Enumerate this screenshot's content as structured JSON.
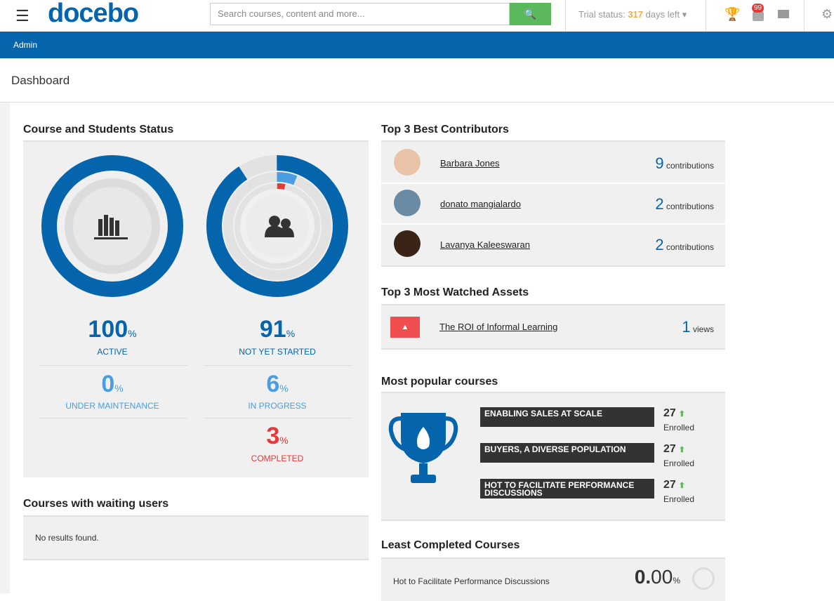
{
  "header": {
    "logo": "docebo",
    "search_placeholder": "Search courses, content and more...",
    "trial_label": "Trial status:",
    "trial_days": "317",
    "trial_suffix": "days left",
    "badge": "99"
  },
  "nav": {
    "item": "Admin"
  },
  "page_title": "Dashboard",
  "course_status": {
    "title": "Course and Students Status",
    "courses": [
      {
        "value": 100,
        "unit": "%",
        "label": "ACTIVE"
      },
      {
        "value": 0,
        "unit": "%",
        "label": "UNDER MAINTENANCE"
      }
    ],
    "students": [
      {
        "value": 91,
        "unit": "%",
        "label": "NOT YET STARTED"
      },
      {
        "value": 6,
        "unit": "%",
        "label": "IN PROGRESS"
      },
      {
        "value": 3,
        "unit": "%",
        "label": "COMPLETED"
      }
    ]
  },
  "waiting": {
    "title": "Courses with waiting users",
    "message": "No results found."
  },
  "contributors": {
    "title": "Top 3 Best Contributors",
    "items": [
      {
        "name": "Barbara Jones",
        "count": 9,
        "unit": "contributions"
      },
      {
        "name": "donato mangialardo",
        "count": 2,
        "unit": "contributions"
      },
      {
        "name": "Lavanya Kaleeswaran",
        "count": 2,
        "unit": "contributions"
      }
    ]
  },
  "assets": {
    "title": "Top 3 Most Watched Assets",
    "items": [
      {
        "name": "The ROI of Informal Learning",
        "views": 1,
        "unit": "views"
      }
    ]
  },
  "popular": {
    "title": "Most popular courses",
    "items": [
      {
        "name": "ENABLING SALES AT SCALE",
        "enrolled": 27,
        "label": "Enrolled"
      },
      {
        "name": "BUYERS, A DIVERSE POPULATION",
        "enrolled": 27,
        "label": "Enrolled"
      },
      {
        "name": "HOT TO FACILITATE PERFORMANCE DISCUSSIONS",
        "enrolled": 27,
        "label": "Enrolled"
      }
    ]
  },
  "least": {
    "title": "Least Completed Courses",
    "items": [
      {
        "name": "Hot to Facilitate Performance Discussions",
        "whole": "0.",
        "decimal": "00",
        "unit": "%"
      }
    ]
  }
}
